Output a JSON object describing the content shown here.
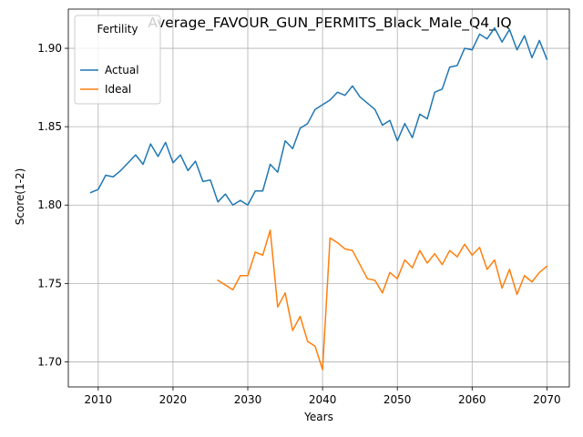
{
  "chart_data": {
    "type": "line",
    "title": "Average_FAVOUR_GUN_PERMITS_Black_Male_Q4_IQ",
    "xlabel": "Years",
    "ylabel": "Score(1-2)",
    "xlim": [
      2006,
      2073
    ],
    "ylim": [
      1.684,
      1.925
    ],
    "xticks": [
      2010,
      2020,
      2030,
      2040,
      2050,
      2060,
      2070
    ],
    "yticks": [
      1.7,
      1.75,
      1.8,
      1.85,
      1.9
    ],
    "ytick_labels": [
      "1.70",
      "1.75",
      "1.80",
      "1.85",
      "1.90"
    ],
    "grid": true,
    "legend": {
      "title": "Fertility",
      "placement": "top-left"
    },
    "series": [
      {
        "name": "Actual",
        "color": "#1f77b4",
        "x": [
          2009,
          2010,
          2011,
          2012,
          2013,
          2014,
          2015,
          2016,
          2017,
          2018,
          2019,
          2020,
          2021,
          2022,
          2023,
          2024,
          2025,
          2026,
          2027,
          2028,
          2029,
          2030,
          2031,
          2032,
          2033,
          2034,
          2035,
          2036,
          2037,
          2038,
          2039,
          2040,
          2041,
          2042,
          2043,
          2044,
          2045,
          2046,
          2047,
          2048,
          2049,
          2050,
          2051,
          2052,
          2053,
          2054,
          2055,
          2056,
          2057,
          2058,
          2059,
          2060,
          2061,
          2062,
          2063,
          2064,
          2065,
          2066,
          2067,
          2068,
          2069,
          2070
        ],
        "y": [
          1.808,
          1.81,
          1.819,
          1.818,
          1.822,
          1.827,
          1.832,
          1.826,
          1.839,
          1.831,
          1.84,
          1.827,
          1.832,
          1.822,
          1.828,
          1.815,
          1.816,
          1.802,
          1.807,
          1.8,
          1.803,
          1.8,
          1.809,
          1.809,
          1.826,
          1.821,
          1.841,
          1.836,
          1.849,
          1.852,
          1.861,
          1.864,
          1.867,
          1.872,
          1.87,
          1.876,
          1.869,
          1.865,
          1.861,
          1.851,
          1.854,
          1.841,
          1.852,
          1.843,
          1.858,
          1.855,
          1.872,
          1.874,
          1.888,
          1.889,
          1.9,
          1.899,
          1.909,
          1.906,
          1.913,
          1.904,
          1.912,
          1.899,
          1.908,
          1.894,
          1.905,
          1.893
        ]
      },
      {
        "name": "Ideal",
        "color": "#ff7f0e",
        "x": [
          2026,
          2027,
          2028,
          2029,
          2030,
          2031,
          2032,
          2033,
          2034,
          2035,
          2036,
          2037,
          2038,
          2039,
          2040,
          2041,
          2042,
          2043,
          2044,
          2045,
          2046,
          2047,
          2048,
          2049,
          2050,
          2051,
          2052,
          2053,
          2054,
          2055,
          2056,
          2057,
          2058,
          2059,
          2060,
          2061,
          2062,
          2063,
          2064,
          2065,
          2066,
          2067,
          2068,
          2069,
          2070
        ],
        "y": [
          1.752,
          1.749,
          1.746,
          1.755,
          1.755,
          1.77,
          1.768,
          1.784,
          1.735,
          1.744,
          1.72,
          1.729,
          1.713,
          1.71,
          1.695,
          1.779,
          1.776,
          1.772,
          1.771,
          1.762,
          1.753,
          1.752,
          1.744,
          1.757,
          1.753,
          1.765,
          1.76,
          1.771,
          1.763,
          1.769,
          1.762,
          1.771,
          1.767,
          1.775,
          1.768,
          1.773,
          1.759,
          1.765,
          1.747,
          1.759,
          1.743,
          1.755,
          1.751,
          1.757,
          1.761
        ]
      }
    ]
  }
}
